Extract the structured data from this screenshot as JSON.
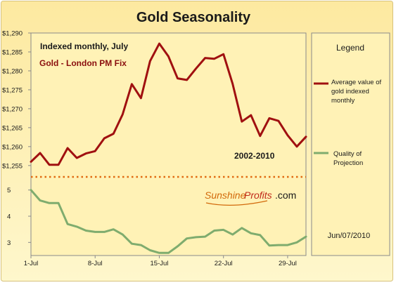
{
  "colors": {
    "frame_bg": "#fbe9a4",
    "plot_bg": "#fff2b6",
    "legend_bg": "#fff2b6",
    "gold_line": "#a01010",
    "quality_line": "#7fac6e",
    "divider_dots": "#e06a10",
    "logo_sunshine": "#d26a0c",
    "logo_profits": "#c02a1a"
  },
  "chart_data": {
    "type": "line",
    "title": "Gold Seasonality",
    "subtitle": "Indexed monthly, July",
    "annotations": {
      "series_label": "Gold - London PM Fix",
      "period": "2002-2010",
      "date": "Jun/07/2010"
    },
    "legend": {
      "title": "Legend",
      "placement": "right",
      "entries": [
        {
          "label": "Average value of gold indexed monthly",
          "lines": [
            "Average value of",
            "gold indexed",
            "monthly"
          ],
          "color": "#a01010"
        },
        {
          "label": "Quality of Projection",
          "lines": [
            "Quality of",
            "Projection"
          ],
          "color": "#7fac6e"
        }
      ]
    },
    "x_ticks": [
      {
        "label": "1-Jul",
        "day": 1
      },
      {
        "label": "8-Jul",
        "day": 8
      },
      {
        "label": "15-Jul",
        "day": 15
      },
      {
        "label": "22-Jul",
        "day": 22
      },
      {
        "label": "29-Jul",
        "day": 29
      }
    ],
    "x": [
      1,
      2,
      3,
      4,
      5,
      6,
      7,
      8,
      9,
      10,
      11,
      12,
      13,
      14,
      15,
      16,
      17,
      18,
      19,
      20,
      21,
      22,
      23,
      24,
      25,
      26,
      27,
      28,
      29,
      30,
      31
    ],
    "xlim": [
      1,
      31
    ],
    "series": [
      {
        "name": "Average value of gold indexed monthly",
        "values": [
          1256,
          1258.3,
          1255.2,
          1255.2,
          1259.6,
          1257,
          1258.2,
          1258.8,
          1262.2,
          1263.4,
          1268.5,
          1276.5,
          1272.8,
          1282.6,
          1287.2,
          1283.8,
          1278,
          1277.6,
          1280.6,
          1283.4,
          1283.2,
          1284.4,
          1276.6,
          1266.6,
          1268.3,
          1262.8,
          1267.5,
          1266.8,
          1263,
          1260,
          1262.6
        ],
        "ylim": [
          1252,
          1290
        ],
        "y_ticks": [
          "$1,255",
          "$1,260",
          "$1,265",
          "$1,270",
          "$1,275",
          "$1,280",
          "$1,285",
          "$1,290"
        ]
      },
      {
        "name": "Quality of Projection",
        "values": [
          5,
          4.6,
          4.5,
          4.5,
          3.7,
          3.6,
          3.45,
          3.4,
          3.4,
          3.5,
          3.3,
          2.95,
          2.9,
          2.7,
          2.6,
          2.6,
          2.85,
          3.15,
          3.2,
          3.22,
          3.45,
          3.48,
          3.3,
          3.55,
          3.35,
          3.28,
          2.88,
          2.9,
          2.9,
          3.0,
          3.22
        ],
        "ylim": [
          2.5,
          5.5
        ],
        "y_ticks": [
          "3",
          "4",
          "5"
        ]
      }
    ],
    "grid": false
  },
  "logo": {
    "part1": "Sunshine",
    "part2": "Profits",
    "part3": ".com"
  }
}
